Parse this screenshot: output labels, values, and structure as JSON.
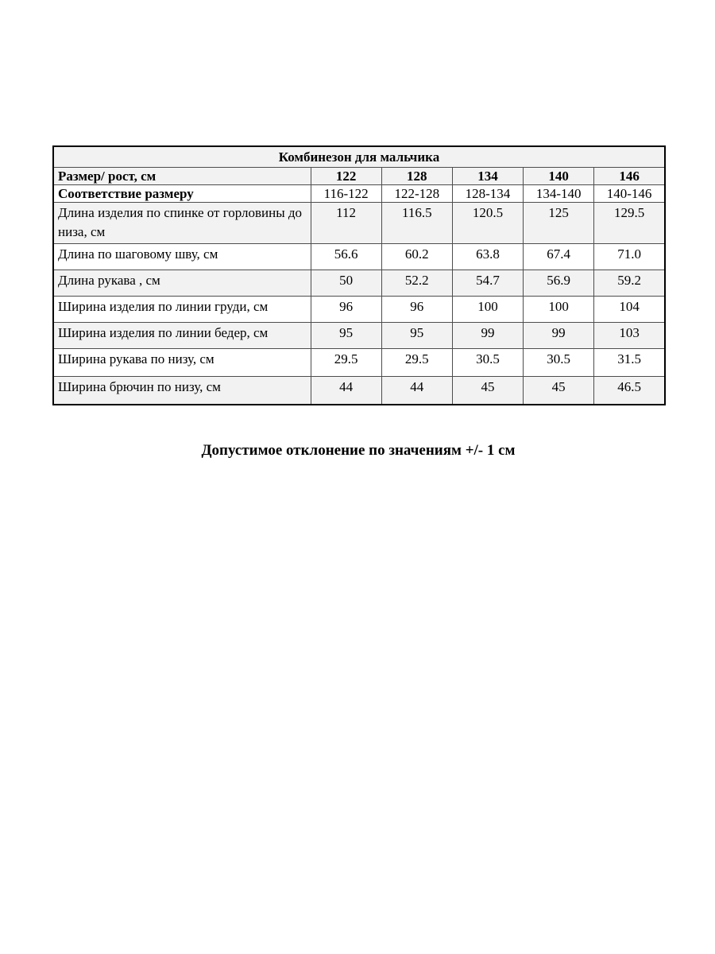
{
  "table": {
    "title": "Комбинезон для мальчика",
    "size_row": {
      "label": "Размер/ рост, см",
      "values": [
        "122",
        "128",
        "134",
        "140",
        "146"
      ]
    },
    "match_row": {
      "label": "Соответствие размеру",
      "values": [
        "116-122",
        "122-128",
        "128-134",
        "134-140",
        "140-146"
      ]
    },
    "rows": [
      {
        "label": "Длина изделия по спинке от горловины до низа, см",
        "values": [
          "112",
          "116.5",
          "120.5",
          "125",
          "129.5"
        ]
      },
      {
        "label": "Длина по шаговому шву, см",
        "values": [
          "56.6",
          "60.2",
          "63.8",
          "67.4",
          "71.0"
        ]
      },
      {
        "label": "Длина рукава , см",
        "values": [
          "50",
          "52.2",
          "54.7",
          "56.9",
          "59.2"
        ]
      },
      {
        "label": "Ширина изделия по линии груди, см",
        "values": [
          "96",
          "96",
          "100",
          "100",
          "104"
        ]
      },
      {
        "label": "Ширина изделия по линии бедер, см",
        "values": [
          "95",
          "95",
          "99",
          "99",
          "103"
        ]
      },
      {
        "label": "Ширина рукава по низу, см",
        "values": [
          "29.5",
          "29.5",
          "30.5",
          "30.5",
          "31.5"
        ]
      },
      {
        "label": "Ширина брючин по низу, см",
        "values": [
          "44",
          "44",
          "45",
          "45",
          "46.5"
        ]
      }
    ]
  },
  "note": "Допустимое отклонение по значениям +/- 1 см",
  "colors": {
    "row_shade": "#f2f2f2",
    "border_outer": "#000000",
    "border_inner": "#4d4d4d",
    "text": "#000000"
  }
}
